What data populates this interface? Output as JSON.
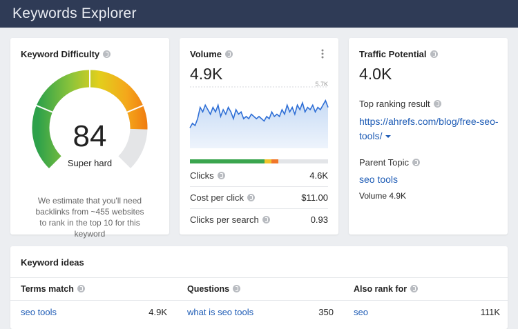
{
  "header": {
    "title": "Keywords Explorer"
  },
  "difficulty": {
    "title": "Keyword Difficulty",
    "value": 84,
    "scale": [
      0,
      100
    ],
    "rating": "Super hard",
    "note": "We estimate that you'll need backlinks from ~455 websites to rank in the top 10 for this keyword"
  },
  "volume": {
    "title": "Volume",
    "value": "4.9K",
    "trend": {
      "ylim": [
        3,
        5.7
      ],
      "max_label": {
        "value": 5.7,
        "label": "5.7K"
      },
      "values": [
        3.9,
        4.1,
        4.0,
        4.3,
        4.8,
        4.6,
        4.9,
        4.7,
        4.5,
        4.8,
        4.6,
        4.9,
        4.4,
        4.7,
        4.5,
        4.8,
        4.6,
        4.3,
        4.7,
        4.5,
        4.6,
        4.3,
        4.4,
        4.3,
        4.5,
        4.4,
        4.3,
        4.4,
        4.3,
        4.2,
        4.4,
        4.3,
        4.6,
        4.4,
        4.5,
        4.4,
        4.7,
        4.5,
        4.9,
        4.6,
        4.8,
        4.5,
        4.9,
        4.7,
        5.0,
        4.6,
        4.8,
        4.7,
        4.9,
        4.6,
        4.8,
        4.7,
        4.9,
        5.1,
        4.8
      ]
    },
    "metrics": [
      {
        "label": "Clicks",
        "value": "4.6K"
      },
      {
        "label": "Cost per click",
        "value": "$11.00"
      },
      {
        "label": "Clicks per search",
        "value": "0.93"
      }
    ]
  },
  "traffic": {
    "title": "Traffic Potential",
    "value": "4.0K",
    "top_result_label": "Top ranking result",
    "top_result_url": "https://ahrefs.com/blog/free-seo-tools/",
    "parent_topic_label": "Parent Topic",
    "parent_topic": "seo tools",
    "parent_volume": "Volume 4.9K"
  },
  "ideas": {
    "title": "Keyword ideas",
    "columns": [
      {
        "header": "Terms match",
        "keyword": "seo tools",
        "volume": "4.9K"
      },
      {
        "header": "Questions",
        "keyword": "what is seo tools",
        "volume": "350"
      },
      {
        "header": "Also rank for",
        "keyword": "seo",
        "volume": "111K"
      }
    ]
  }
}
